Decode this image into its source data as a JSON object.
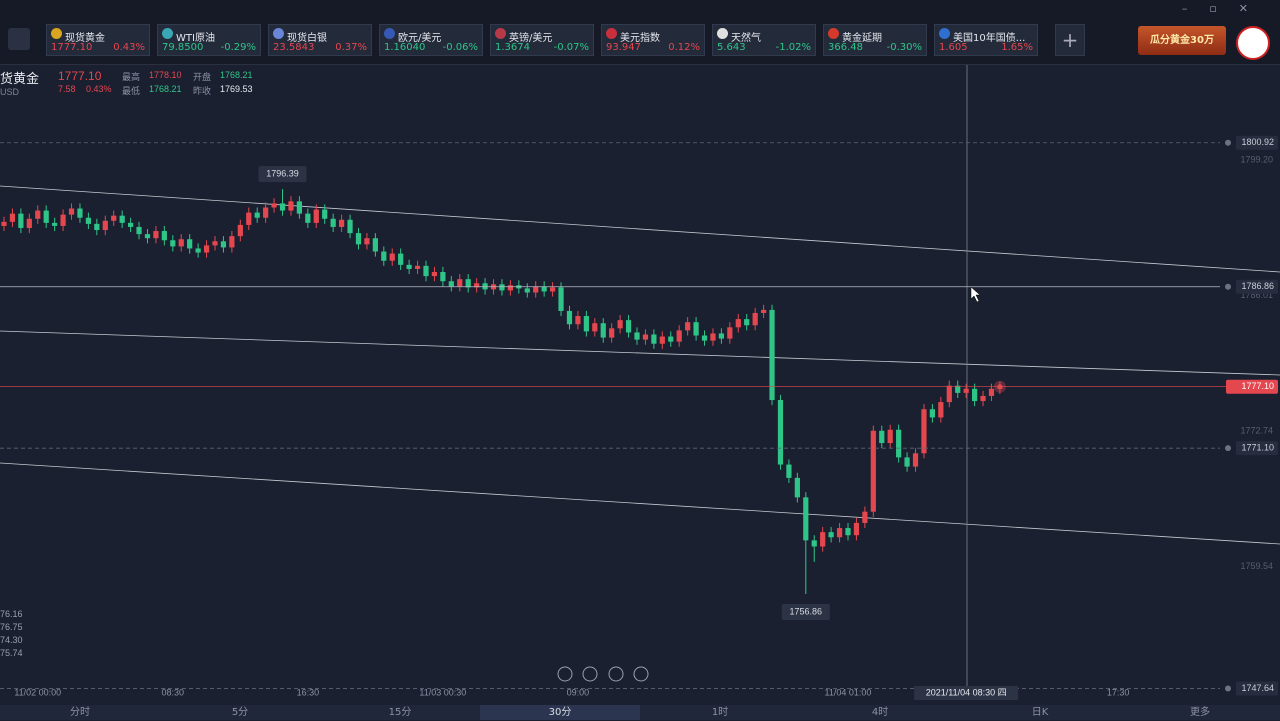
{
  "header": {
    "tickers": [
      {
        "name": "现货黄金",
        "price": "1777.10",
        "change": "0.43%"
      },
      {
        "name": "WTI原油",
        "price": "79.8500",
        "change": "-0.29%"
      },
      {
        "name": "现货白银",
        "price": "23.5843",
        "change": "0.37%"
      },
      {
        "name": "欧元/美元",
        "price": "1.16040",
        "change": "-0.06%"
      },
      {
        "name": "英镑/美元",
        "price": "1.3674",
        "change": "-0.07%"
      },
      {
        "name": "美元指数",
        "price": "93.947",
        "change": "0.12%"
      },
      {
        "name": "天然气",
        "price": "5.643",
        "change": "-1.02%"
      },
      {
        "name": "黄金延期",
        "price": "366.48",
        "change": "-0.30%"
      },
      {
        "name": "美国10年国债...",
        "price": "1.605",
        "change": "1.65%"
      }
    ],
    "banner": "瓜分黄金30万"
  },
  "quote": {
    "symbol": "货黄金",
    "price": "1777.10",
    "currency": "USD",
    "change": "7.58",
    "change_pct": "0.43%",
    "high_label": "最高",
    "high": "1778.10",
    "open_label": "开盘",
    "open": "1768.21",
    "low_label": "最低",
    "low": "1768.21",
    "prev_label": "昨收",
    "prev": "1769.53"
  },
  "left_labels": [
    "76.16",
    "76.75",
    "74.30",
    "75.74"
  ],
  "timeframes": [
    "分时",
    "5分",
    "15分",
    "30分",
    "1时",
    "4时",
    "日K",
    "更多"
  ],
  "active_timeframe": "30分",
  "chart_data": {
    "type": "candlestick",
    "categories": [
      null,
      null,
      null,
      null,
      "11/02 00:00",
      null,
      null,
      null,
      null,
      null,
      null,
      null,
      null,
      null,
      null,
      null,
      null,
      null,
      null,
      null,
      "08:30",
      null,
      null,
      null,
      null,
      null,
      null,
      null,
      null,
      null,
      null,
      null,
      null,
      null,
      null,
      null,
      "16:30",
      null,
      null,
      null,
      null,
      null,
      null,
      null,
      null,
      null,
      null,
      null,
      null,
      null,
      null,
      null,
      "11/03 00:30",
      null,
      null,
      null,
      null,
      null,
      null,
      null,
      null,
      null,
      null,
      null,
      null,
      null,
      null,
      null,
      "09:00",
      null,
      null,
      null,
      null,
      null,
      null,
      null,
      null,
      null,
      null,
      null,
      null,
      null,
      null,
      null,
      null,
      null,
      null,
      null,
      null,
      null,
      null,
      null,
      null,
      null,
      null,
      null,
      null,
      null,
      null,
      null,
      "11/04 01:00",
      null,
      null,
      null,
      null,
      null,
      null,
      null,
      null,
      null,
      null,
      null,
      null,
      null,
      null,
      null,
      null,
      null,
      null,
      null,
      null,
      null,
      null,
      null,
      null,
      null,
      null,
      null,
      null,
      null,
      null,
      null,
      "17:30"
    ],
    "open": [
      1792.8,
      1793.2,
      1794.0,
      1792.6,
      1793.5,
      1794.3,
      1793.1,
      1792.8,
      1793.9,
      1794.5,
      1793.6,
      1793.0,
      1792.4,
      1793.3,
      1793.8,
      1793.1,
      1792.7,
      1792.0,
      1791.6,
      1792.3,
      1791.4,
      1790.8,
      1791.5,
      1790.6,
      1790.2,
      1790.9,
      1791.3,
      1790.7,
      1791.8,
      1792.9,
      1794.1,
      1793.6,
      1794.6,
      1795.0,
      1794.3,
      1795.2,
      1794.0,
      1793.1,
      1794.4,
      1793.5,
      1792.7,
      1793.4,
      1792.1,
      1791.0,
      1791.6,
      1790.3,
      1789.4,
      1790.1,
      1789.0,
      1788.6,
      1788.9,
      1787.9,
      1788.3,
      1787.4,
      1786.9,
      1787.6,
      1786.8,
      1787.2,
      1786.6,
      1787.1,
      1786.5,
      1787.0,
      1786.7,
      1786.3,
      1786.9,
      1786.4,
      1786.8,
      1784.5,
      1783.2,
      1784.0,
      1782.5,
      1783.3,
      1781.9,
      1782.8,
      1783.6,
      1782.4,
      1781.7,
      1782.2,
      1781.3,
      1782.0,
      1781.5,
      1782.6,
      1783.4,
      1782.1,
      1781.6,
      1782.3,
      1781.8,
      1782.9,
      1783.7,
      1783.1,
      1784.3,
      1784.6,
      1775.8,
      1769.5,
      1768.2,
      1766.3,
      1762.1,
      1761.5,
      1762.9,
      1762.4,
      1763.3,
      1762.6,
      1763.8,
      1764.9,
      1772.8,
      1771.6,
      1772.9,
      1770.2,
      1769.3,
      1770.6,
      1774.9,
      1774.1,
      1775.6,
      1777.2,
      1776.5,
      1776.9,
      1775.7,
      1776.2,
      1776.9,
      null,
      null,
      null,
      null,
      null,
      null,
      null,
      null,
      null,
      null,
      null,
      null,
      null,
      null
    ],
    "close": [
      1793.2,
      1794.0,
      1792.6,
      1793.5,
      1794.3,
      1793.1,
      1792.8,
      1793.9,
      1794.5,
      1793.6,
      1793.0,
      1792.4,
      1793.3,
      1793.8,
      1793.1,
      1792.7,
      1792.0,
      1791.6,
      1792.3,
      1791.4,
      1790.8,
      1791.5,
      1790.6,
      1790.2,
      1790.9,
      1791.3,
      1790.7,
      1791.8,
      1792.9,
      1794.1,
      1793.6,
      1794.6,
      1795.0,
      1794.3,
      1795.2,
      1794.0,
      1793.1,
      1794.4,
      1793.5,
      1792.7,
      1793.4,
      1792.1,
      1791.0,
      1791.6,
      1790.3,
      1789.4,
      1790.1,
      1789.0,
      1788.6,
      1788.9,
      1787.9,
      1788.3,
      1787.4,
      1786.9,
      1787.6,
      1786.8,
      1787.2,
      1786.6,
      1787.1,
      1786.5,
      1787.0,
      1786.7,
      1786.3,
      1786.9,
      1786.4,
      1786.8,
      1784.5,
      1783.2,
      1784.0,
      1782.5,
      1783.3,
      1781.9,
      1782.8,
      1783.6,
      1782.4,
      1781.7,
      1782.2,
      1781.3,
      1782.0,
      1781.5,
      1782.6,
      1783.4,
      1782.1,
      1781.6,
      1782.3,
      1781.8,
      1782.9,
      1783.7,
      1783.1,
      1784.3,
      1784.6,
      1775.8,
      1769.5,
      1768.2,
      1766.3,
      1762.1,
      1761.5,
      1762.9,
      1762.4,
      1763.3,
      1762.6,
      1763.8,
      1764.9,
      1772.8,
      1771.6,
      1772.9,
      1770.2,
      1769.3,
      1770.6,
      1774.9,
      1774.1,
      1775.6,
      1777.2,
      1776.5,
      1776.9,
      1775.7,
      1776.2,
      1776.9,
      1777.1,
      null,
      null,
      null,
      null,
      null,
      null,
      null,
      null,
      null,
      null,
      null,
      null,
      null,
      null
    ],
    "high": [
      1793.7,
      1794.5,
      1794.5,
      1794.0,
      1794.8,
      1794.8,
      1793.6,
      1794.4,
      1795.0,
      1795.0,
      1794.1,
      1793.5,
      1793.8,
      1794.3,
      1794.3,
      1793.6,
      1793.2,
      1792.5,
      1792.8,
      1792.8,
      1791.9,
      1792.0,
      1792.0,
      1791.1,
      1791.4,
      1791.8,
      1791.8,
      1792.3,
      1793.4,
      1794.6,
      1794.6,
      1795.1,
      1795.5,
      1796.39,
      1795.7,
      1795.7,
      1794.5,
      1794.9,
      1794.9,
      1794.0,
      1793.9,
      1793.9,
      1792.6,
      1792.1,
      1792.1,
      1790.8,
      1790.6,
      1790.6,
      1789.5,
      1789.4,
      1789.4,
      1788.8,
      1788.8,
      1787.9,
      1788.1,
      1788.1,
      1787.7,
      1787.7,
      1787.6,
      1787.6,
      1787.5,
      1787.5,
      1787.2,
      1787.4,
      1787.4,
      1787.3,
      1787.3,
      1785.0,
      1784.5,
      1784.5,
      1783.8,
      1783.8,
      1783.3,
      1784.1,
      1784.1,
      1782.9,
      1782.7,
      1782.7,
      1782.5,
      1782.5,
      1783.1,
      1783.9,
      1783.9,
      1782.6,
      1782.8,
      1782.8,
      1783.4,
      1784.2,
      1784.2,
      1784.8,
      1785.1,
      1785.1,
      1776.3,
      1770.0,
      1768.7,
      1766.8,
      1762.6,
      1763.4,
      1763.4,
      1763.8,
      1763.8,
      1764.3,
      1765.4,
      1773.3,
      1773.3,
      1773.4,
      1773.4,
      1770.7,
      1771.1,
      1775.4,
      1775.4,
      1776.1,
      1777.7,
      1777.7,
      1777.4,
      1777.4,
      1776.7,
      1777.4,
      1777.6,
      null,
      null,
      null,
      null,
      null,
      null,
      null,
      null,
      null,
      null,
      null,
      null,
      null,
      null
    ],
    "low": [
      1792.3,
      1792.7,
      1792.1,
      1792.1,
      1793.0,
      1792.6,
      1792.3,
      1792.3,
      1793.4,
      1793.1,
      1792.5,
      1791.9,
      1791.9,
      1792.8,
      1792.6,
      1792.2,
      1791.5,
      1791.1,
      1791.1,
      1790.9,
      1790.3,
      1790.3,
      1790.1,
      1789.7,
      1789.7,
      1790.4,
      1790.2,
      1790.2,
      1791.3,
      1792.4,
      1793.1,
      1793.1,
      1794.1,
      1793.8,
      1793.8,
      1793.5,
      1792.6,
      1792.6,
      1793.0,
      1792.2,
      1792.2,
      1791.6,
      1790.5,
      1790.5,
      1789.8,
      1788.9,
      1788.9,
      1788.5,
      1788.1,
      1788.1,
      1787.4,
      1787.4,
      1786.9,
      1786.4,
      1786.4,
      1786.3,
      1786.3,
      1786.1,
      1786.1,
      1786.0,
      1786.0,
      1786.2,
      1785.8,
      1785.8,
      1785.9,
      1785.9,
      1784.0,
      1782.7,
      1782.7,
      1782.0,
      1782.0,
      1781.4,
      1781.4,
      1782.3,
      1781.9,
      1781.2,
      1781.2,
      1780.8,
      1780.8,
      1781.0,
      1781.0,
      1782.1,
      1781.6,
      1781.1,
      1781.1,
      1781.3,
      1781.3,
      1782.4,
      1782.6,
      1782.6,
      1783.8,
      1775.3,
      1769.0,
      1767.7,
      1765.8,
      1756.86,
      1760.0,
      1761.0,
      1761.9,
      1761.9,
      1762.1,
      1762.1,
      1763.3,
      1764.4,
      1771.1,
      1771.1,
      1769.7,
      1768.8,
      1768.8,
      1770.1,
      1773.6,
      1773.6,
      1775.1,
      1776.0,
      1776.0,
      1775.2,
      1775.2,
      1775.7,
      1776.4,
      null,
      null,
      null,
      null,
      null,
      null,
      null,
      null,
      null,
      null,
      null,
      null,
      null,
      null
    ],
    "up_color": "#e5474f",
    "down_color": "#2fc589",
    "ylim": [
      1747,
      1809
    ],
    "yticks": [
      {
        "value": 1799.2,
        "label": "1799.20"
      },
      1786.01,
      1772.74,
      1759.54
    ],
    "grid": false,
    "price_lines": [
      {
        "value": 1800.92,
        "style": "dashed"
      },
      {
        "value": 1786.86,
        "style": "solid"
      },
      {
        "value": 1777.1,
        "label": "1777.10",
        "style": "current"
      },
      {
        "value": {
          "value": 1771.1,
          "label": "1771.10"
        },
        "style": "dashed"
      },
      {
        "value": 1747.64,
        "style": "dashed"
      }
    ],
    "annotations": [
      "chart_data.high.33",
      "chart_data.low.95"
    ],
    "crosshair_label": "2021/11/04 08:30 四"
  }
}
